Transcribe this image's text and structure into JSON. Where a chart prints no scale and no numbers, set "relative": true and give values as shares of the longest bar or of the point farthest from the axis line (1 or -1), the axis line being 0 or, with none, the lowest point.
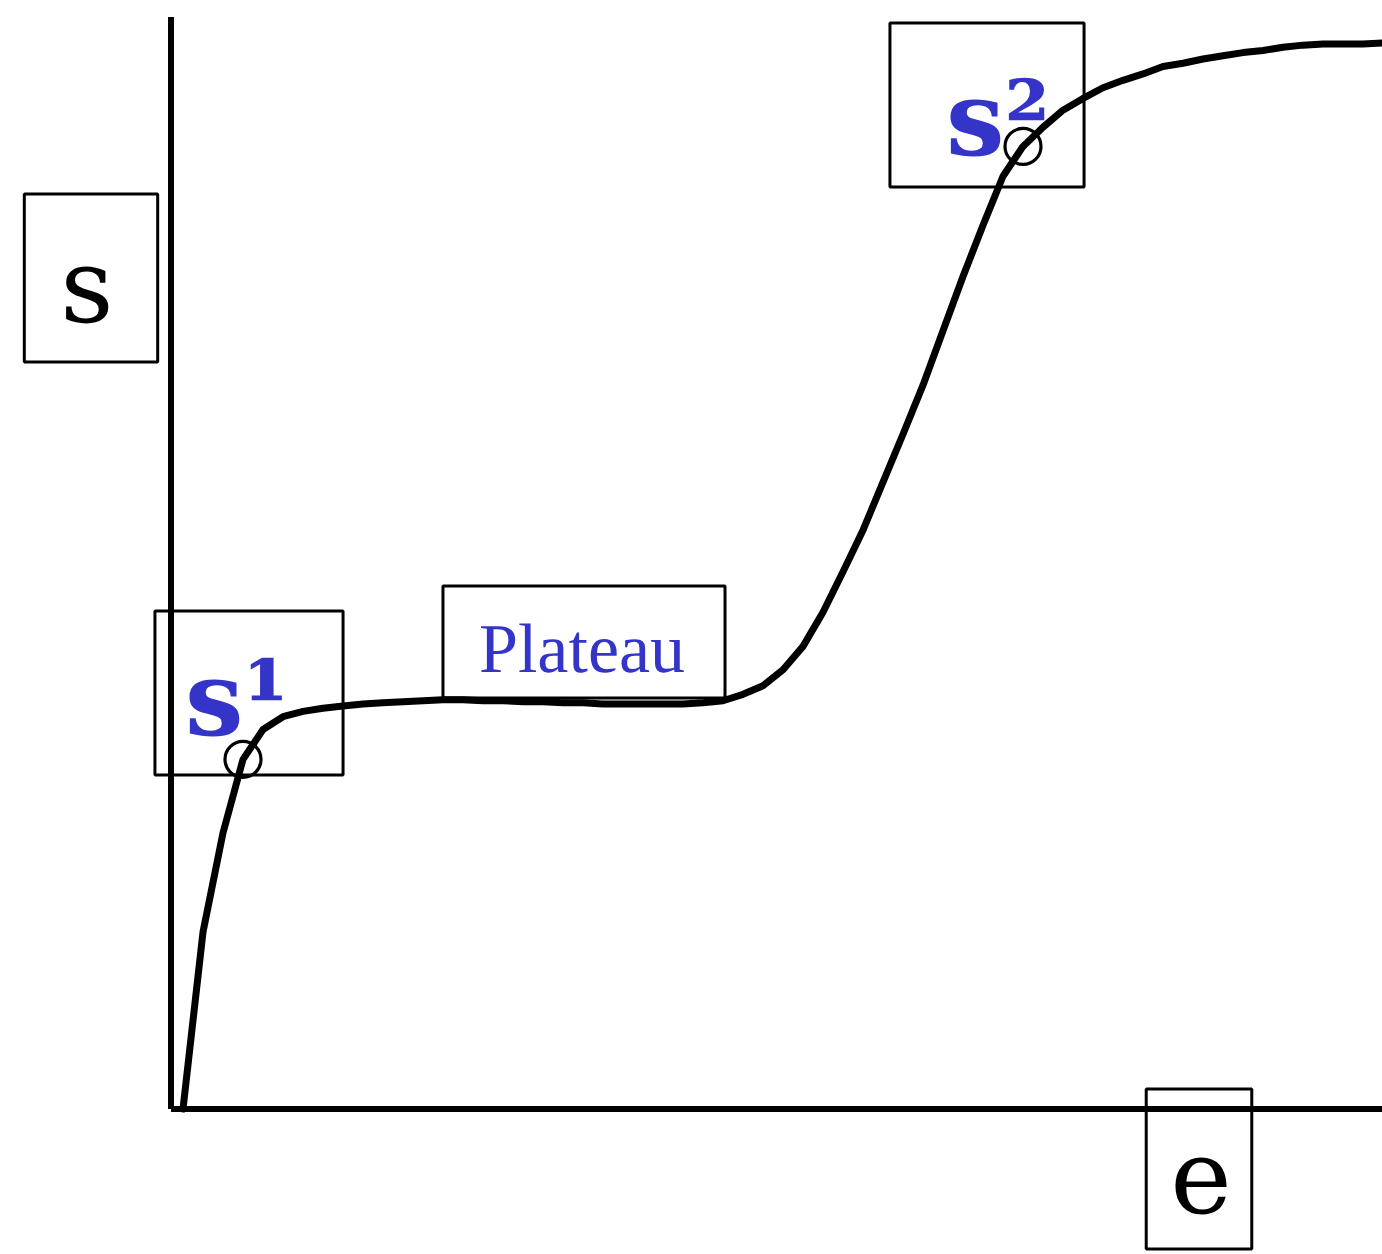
{
  "chart_data": {
    "type": "line",
    "relative": true,
    "xlabel": "e",
    "ylabel": "s",
    "annotations": [
      {
        "text": "s¹",
        "y": 0.328
      },
      "Plateau",
      {
        "text": "s²",
        "y": 0.903
      }
    ],
    "categories": [
      null,
      null,
      null,
      null,
      null,
      null,
      null,
      null,
      null,
      null,
      null,
      null,
      null,
      null,
      null,
      null,
      null,
      null,
      null,
      null,
      null,
      null,
      null,
      null,
      null,
      null,
      null,
      null,
      null,
      null,
      null,
      null,
      null,
      null,
      null,
      null,
      null,
      null,
      null,
      null,
      null,
      null,
      null,
      null,
      null,
      null,
      null,
      null,
      null,
      null,
      null,
      null,
      null,
      null,
      null,
      null,
      null,
      null,
      null,
      null,
      null
    ],
    "series": [
      {
        "color": "#000000",
        "values": [
          0,
          0.166,
          0.259,
          0.328,
          0.356,
          0.368,
          0.373,
          0.376,
          0.378,
          0.38,
          0.381,
          0.382,
          0.383,
          0.384,
          0.384,
          0.383,
          0.383,
          0.382,
          0.382,
          0.381,
          0.381,
          0.38,
          0.38,
          0.38,
          0.38,
          0.38,
          0.381,
          0.383,
          0.389,
          0.397,
          0.412,
          0.434,
          0.466,
          0.504,
          0.543,
          0.588,
          0.633,
          0.679,
          0.73,
          0.781,
          0.829,
          0.875,
          0.903,
          0.921,
          0.937,
          0.948,
          0.958,
          0.965,
          0.971,
          0.978,
          0.981,
          0.985,
          0.988,
          0.991,
          0.993,
          0.996,
          0.998,
          0.999,
          0.999,
          0.999,
          1
        ]
      }
    ]
  }
}
